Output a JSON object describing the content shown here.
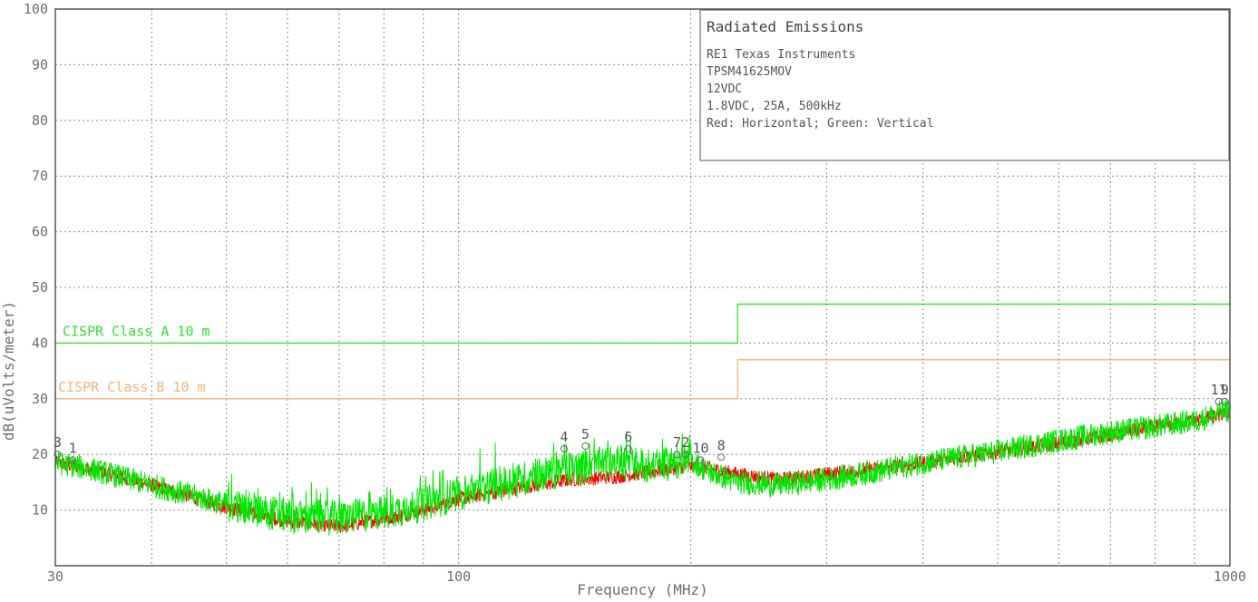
{
  "chart_data": {
    "type": "line",
    "title": "Radiated Emissions",
    "info_lines": [
      "RE1 Texas Instruments",
      "TPSM41625MOV",
      "12VDC",
      "1.8VDC, 25A, 500kHz",
      "Red: Horizontal; Green: Vertical"
    ],
    "xlabel": "Frequency (MHz)",
    "ylabel": "dB(uVolts/meter)",
    "xscale": "log",
    "xlim": [
      30,
      1000
    ],
    "ylim": [
      0,
      100
    ],
    "x_tick_labels": [
      {
        "value": 30,
        "label": "30"
      },
      {
        "value": 100,
        "label": "100"
      },
      {
        "value": 1000,
        "label": "1000"
      }
    ],
    "y_tick_labels": [
      "10",
      "20",
      "30",
      "40",
      "50",
      "60",
      "70",
      "80",
      "90",
      "100"
    ],
    "grid": true,
    "colors": {
      "horizontal": "#ff0000",
      "vertical": "#00e600",
      "class_a": "#33dd33",
      "class_b": "#f4b37a",
      "grid": "#8c8c8c",
      "axis": "#555555"
    },
    "limits": [
      {
        "name": "CISPR Class A 10 m",
        "color": "#33dd33",
        "segments": [
          {
            "x": [
              30,
              230
            ],
            "y": 40
          },
          {
            "x": [
              230,
              1000
            ],
            "y": 47
          }
        ]
      },
      {
        "name": "CISPR Class B 10 m",
        "color": "#f4b37a",
        "segments": [
          {
            "x": [
              30,
              230
            ],
            "y": 30
          },
          {
            "x": [
              230,
              1000
            ],
            "y": 37
          }
        ]
      }
    ],
    "series": [
      {
        "name": "Horizontal",
        "color": "#ff0000",
        "x": [
          30,
          33,
          40,
          50,
          60,
          70,
          80,
          90,
          100,
          120,
          140,
          160,
          180,
          200,
          210,
          230,
          260,
          300,
          350,
          400,
          500,
          600,
          700,
          800,
          900,
          1000
        ],
        "y": [
          18.5,
          17.5,
          14.5,
          10.5,
          8,
          7,
          8.5,
          10,
          12,
          14,
          15.5,
          16,
          17,
          18,
          17.5,
          16.5,
          15.5,
          16.5,
          17.5,
          18.5,
          20.5,
          22,
          23.5,
          25,
          26,
          27.5
        ],
        "noise": 1.3
      },
      {
        "name": "Vertical",
        "color": "#00e600",
        "x": [
          30,
          33,
          40,
          50,
          60,
          70,
          80,
          90,
          100,
          120,
          140,
          160,
          180,
          200,
          210,
          230,
          260,
          300,
          350,
          400,
          500,
          600,
          700,
          800,
          900,
          1000
        ],
        "y": [
          18.5,
          17.5,
          14.5,
          11,
          9,
          8.5,
          9.5,
          11,
          13,
          15.5,
          17.5,
          18.5,
          18,
          19,
          17,
          15,
          14.5,
          15.5,
          17,
          18.5,
          20.5,
          22.5,
          24,
          25,
          26,
          28
        ],
        "noise": 2.2
      }
    ],
    "markers": [
      {
        "label": "3",
        "x": 30.2,
        "y": 20
      },
      {
        "label": "1",
        "x": 31.6,
        "y": 19
      },
      {
        "label": "4",
        "x": 137,
        "y": 21
      },
      {
        "label": "5",
        "x": 146,
        "y": 21.5
      },
      {
        "label": "6",
        "x": 166,
        "y": 21
      },
      {
        "label": "7",
        "x": 192,
        "y": 20
      },
      {
        "label": "2",
        "x": 197,
        "y": 20
      },
      {
        "label": "10",
        "x": 206,
        "y": 19
      },
      {
        "label": "8",
        "x": 219,
        "y": 19.5
      },
      {
        "label": "11",
        "x": 967,
        "y": 29.5
      },
      {
        "label": "9",
        "x": 985,
        "y": 29.5
      }
    ]
  }
}
